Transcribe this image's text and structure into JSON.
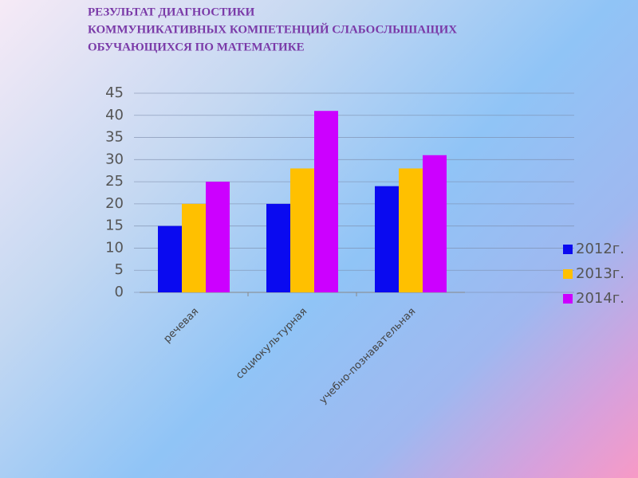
{
  "chart_data": {
    "type": "bar",
    "title": [
      "РЕЗУЛЬТАТ ДИАГНОСТИКИ",
      "КОММУНИКАТИВНЫХ КОМПЕТЕНЦИЙ СЛАБОСЛЫШАЩИХ",
      "ОБУЧАЮЩИХСЯ ПО  МАТЕМАТИКЕ"
    ],
    "categories": [
      "речевая",
      "социокультурная",
      "учебно-познавательная"
    ],
    "series": [
      {
        "name": "2012г.",
        "color": "#0a0af0",
        "values": [
          15,
          20,
          24
        ]
      },
      {
        "name": "2013г.",
        "color": "#ffc000",
        "values": [
          20,
          28,
          28
        ]
      },
      {
        "name": "2014г.",
        "color": "#cc00ff",
        "values": [
          25,
          41,
          31
        ]
      }
    ],
    "ylim": [
      0,
      45
    ],
    "yticks": [
      0,
      5,
      10,
      15,
      20,
      25,
      30,
      35,
      40,
      45
    ],
    "grid": true,
    "legend": "right"
  }
}
